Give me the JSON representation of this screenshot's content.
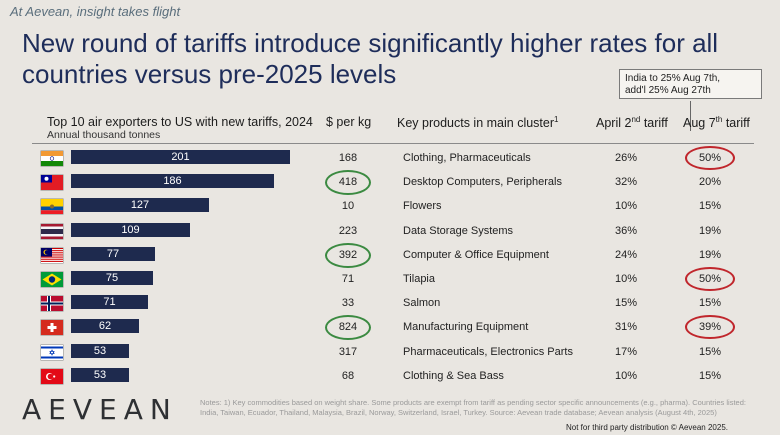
{
  "tagline": "At Aevean, insight takes flight",
  "title": "New round of tariffs introduce significantly higher rates for all countries versus pre-2025 levels",
  "callout": {
    "line1": "India to 25% Aug 7th,",
    "line2": "add'l 25% Aug 27th"
  },
  "headers": {
    "chart": "Top 10 air exporters to US with new tariffs, 2024",
    "chart_sub": "Annual thousand tonnes",
    "per_kg": "$ per kg",
    "products": "Key products in main cluster",
    "products_sup": "1",
    "april_pre": "April 2",
    "april_sup": "nd",
    "april_post": " tariff",
    "aug_pre": "Aug 7",
    "aug_sup": "th",
    "aug_post": " tariff"
  },
  "chart_data": {
    "type": "bar",
    "orientation": "horizontal",
    "categories": [
      "India",
      "Taiwan",
      "Ecuador",
      "Thailand",
      "Malaysia",
      "Brazil",
      "Norway",
      "Switzerland",
      "Israel",
      "Turkey"
    ],
    "values": [
      201,
      186,
      127,
      109,
      77,
      75,
      71,
      62,
      53,
      53
    ],
    "title": "Top 10 air exporters to US with new tariffs, 2024",
    "subtitle": "Annual thousand tonnes",
    "bar_color": "#1e2a4e"
  },
  "rows": [
    {
      "flag": "india-flag",
      "per_kg": "168",
      "product": "Clothing, Pharmaceuticals",
      "april": "26%",
      "aug": "50%",
      "green": false,
      "red": true
    },
    {
      "flag": "taiwan-flag",
      "per_kg": "418",
      "product": "Desktop Computers, Peripherals",
      "april": "32%",
      "aug": "20%",
      "green": true,
      "red": false
    },
    {
      "flag": "ecuador-flag",
      "per_kg": "10",
      "product": "Flowers",
      "april": "10%",
      "aug": "15%",
      "green": false,
      "red": false
    },
    {
      "flag": "thailand-flag",
      "per_kg": "223",
      "product": "Data Storage Systems",
      "april": "36%",
      "aug": "19%",
      "green": false,
      "red": false
    },
    {
      "flag": "malaysia-flag",
      "per_kg": "392",
      "product": "Computer & Office Equipment",
      "april": "24%",
      "aug": "19%",
      "green": true,
      "red": false
    },
    {
      "flag": "brazil-flag",
      "per_kg": "71",
      "product": "Tilapia",
      "april": "10%",
      "aug": "50%",
      "green": false,
      "red": true
    },
    {
      "flag": "norway-flag",
      "per_kg": "33",
      "product": "Salmon",
      "april": "15%",
      "aug": "15%",
      "green": false,
      "red": false
    },
    {
      "flag": "switzerland-flag",
      "per_kg": "824",
      "product": "Manufacturing Equipment",
      "april": "31%",
      "aug": "39%",
      "green": true,
      "red": true
    },
    {
      "flag": "israel-flag",
      "per_kg": "317",
      "product": "Pharmaceuticals, Electronics Parts",
      "april": "17%",
      "aug": "15%",
      "green": false,
      "red": false
    },
    {
      "flag": "turkey-flag",
      "per_kg": "68",
      "product": "Clothing & Sea Bass",
      "april": "10%",
      "aug": "15%",
      "green": false,
      "red": false
    }
  ],
  "highlight_colors": {
    "green": "#3b8a41",
    "red": "#c0262c"
  },
  "logo": "AEVEAN",
  "notes": "Notes: 1) Key commodities based on weight share. Some products are exempt from tariff as pending sector specific announcements (e.g., pharma). Countries listed: India, Taiwan, Ecuador, Thailand, Malaysia, Brazil, Norway, Switzerland, Israel, Turkey. Source: Aevean trade database; Aevean analysis (August 4th, 2025)",
  "footer": "Not for third party distribution © Aevean 2025."
}
